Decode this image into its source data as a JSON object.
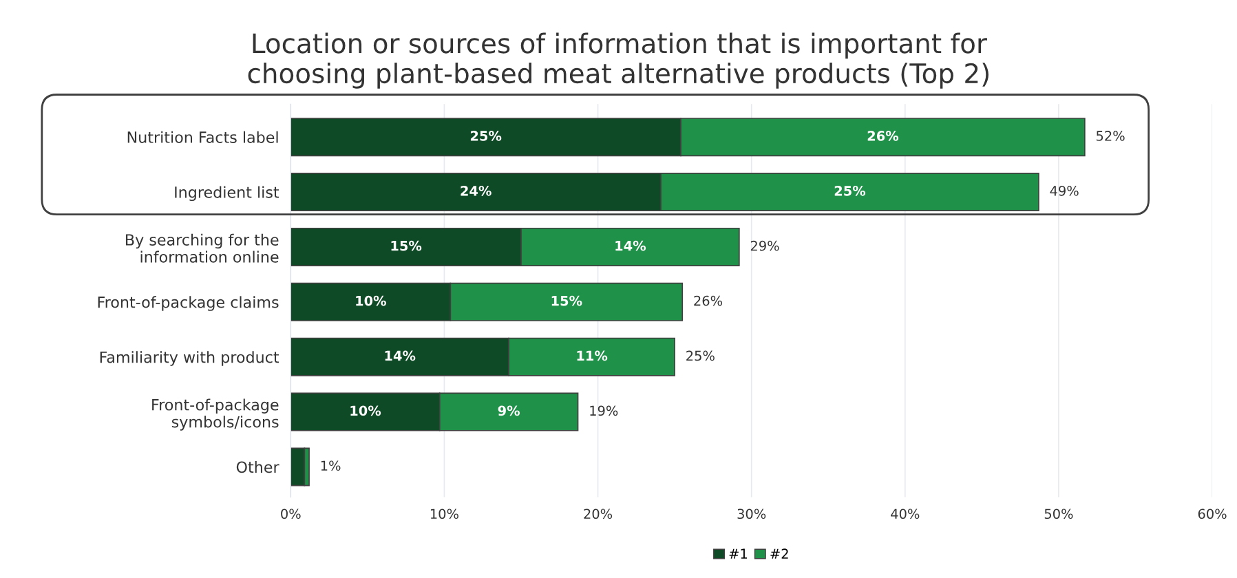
{
  "chart_data": {
    "type": "bar",
    "orientation": "horizontal",
    "stacked": true,
    "title": "Location or sources of information that is important for\nchoosing plant-based meat alternative products (Top 2)",
    "categories": [
      "Nutrition Facts label",
      "Ingredient list",
      "By searching for the\ninformation online",
      "Front-of-package claims",
      "Familiarity with product",
      "Front-of-package\nsymbols/icons",
      "Other"
    ],
    "series": [
      {
        "name": "#1",
        "color": "#0f4a26",
        "values": [
          25.4,
          24.1,
          15.0,
          10.4,
          14.2,
          9.7,
          0.9
        ],
        "value_labels": [
          "25%",
          "24%",
          "15%",
          "10%",
          "14%",
          "10%",
          null
        ]
      },
      {
        "name": "#2",
        "color": "#1f9149",
        "values": [
          26.3,
          24.6,
          14.2,
          15.1,
          10.8,
          9.0,
          0.3
        ],
        "value_labels": [
          "26%",
          "25%",
          "14%",
          "15%",
          "11%",
          "9%",
          null
        ]
      }
    ],
    "totals": [
      "52%",
      "49%",
      "29%",
      "26%",
      "25%",
      "19%",
      "1%"
    ],
    "xlim": [
      0,
      60
    ],
    "xticks": [
      {
        "value": 0,
        "label": "0%"
      },
      {
        "value": 10,
        "label": "10%"
      },
      {
        "value": 20,
        "label": "20%"
      },
      {
        "value": 30,
        "label": "30%"
      },
      {
        "value": 40,
        "label": "40%"
      },
      {
        "value": 50,
        "label": "50%"
      },
      {
        "value": 60,
        "label": "60%"
      }
    ],
    "grid": "x",
    "legend": "bottom"
  }
}
